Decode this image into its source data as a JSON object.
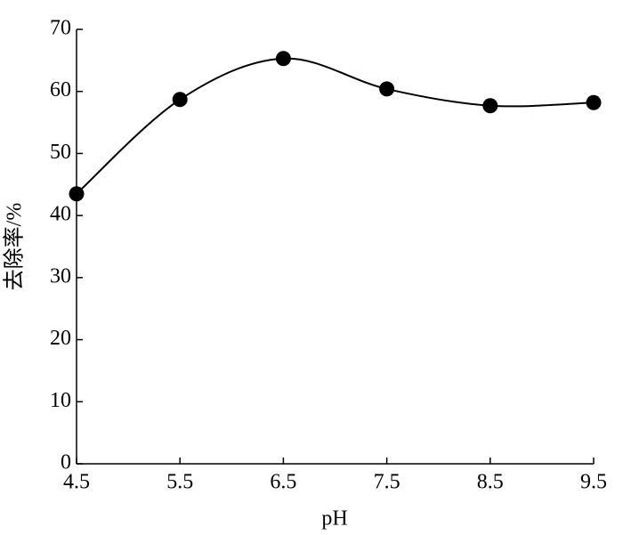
{
  "chart_data": {
    "type": "line",
    "x_label": "pH",
    "y_label": "去除率/%",
    "x": [
      4.5,
      5.5,
      6.5,
      7.5,
      8.5,
      9.5
    ],
    "series": [
      {
        "color": "#000000",
        "values": [
          43.5,
          58.7,
          65.3,
          60.4,
          57.7,
          58.2
        ]
      }
    ],
    "xlim": [
      4.5,
      9.5
    ],
    "xticks": [
      4.5,
      5.5,
      6.5,
      7.5,
      8.5,
      9.5
    ],
    "ylim": [
      0,
      70
    ],
    "yticks": [
      0,
      10,
      20,
      30,
      40,
      50,
      60,
      70
    ],
    "smooth": true
  }
}
